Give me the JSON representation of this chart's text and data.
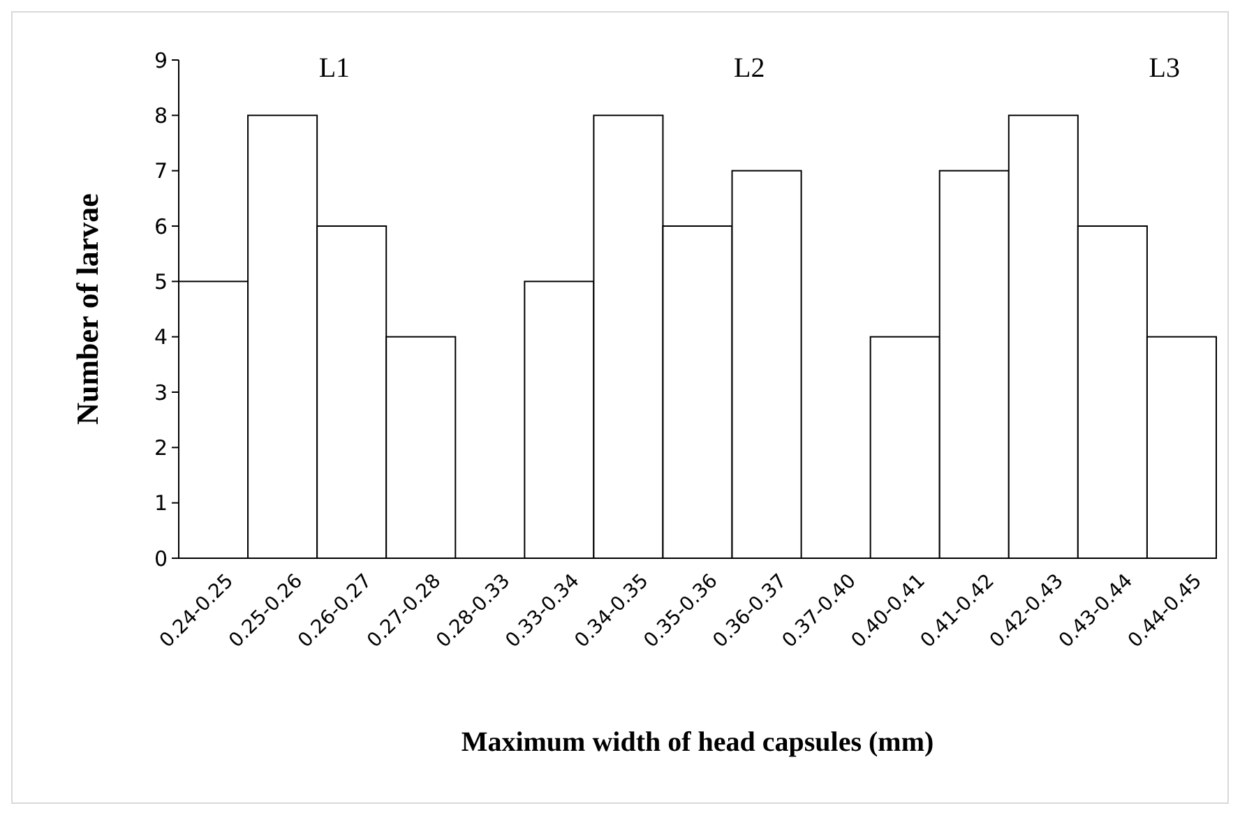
{
  "chart_data": {
    "type": "bar",
    "xlabel": "Maximum width of head capsules (mm)",
    "ylabel": "Number of larvae",
    "categories": [
      "0.24-0.25",
      "0.25-0.26",
      "0.26-0.27",
      "0.27-0.28",
      "0.28-0.33",
      "0.33-0.34",
      "0.34-0.35",
      "0.35-0.36",
      "0.36-0.37",
      "0.37-0.40",
      "0.40-0.41",
      "0.41-0.42",
      "0.42-0.43",
      "0.43-0.44",
      "0.44-0.45"
    ],
    "values": [
      5,
      8,
      6,
      4,
      0,
      5,
      8,
      6,
      7,
      0,
      4,
      7,
      8,
      6,
      4
    ],
    "color": "#ffffff",
    "ylim": [
      0,
      9
    ],
    "yticks": [
      0,
      1,
      2,
      3,
      4,
      5,
      6,
      7,
      8,
      9
    ],
    "grid": false,
    "annotations": [
      "L1",
      "L2",
      "L3"
    ]
  }
}
